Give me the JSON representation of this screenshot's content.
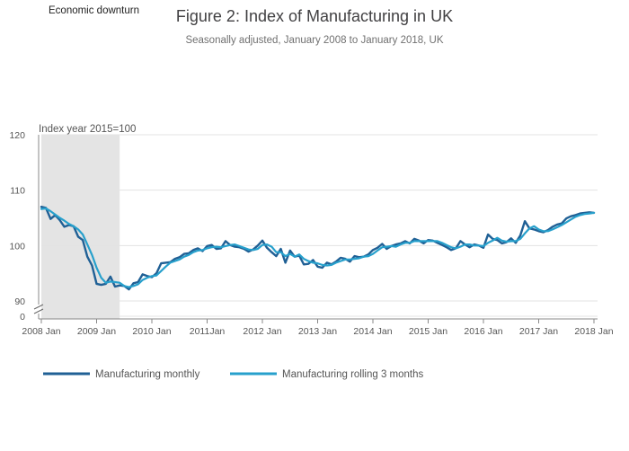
{
  "chart_data": {
    "type": "line",
    "title": "Figure 2: Index of Manufacturing in UK",
    "subtitle": "Seasonally adjusted, January 2008 to January 2018, UK",
    "unit_label": "Index year 2015=100",
    "shaded_region": {
      "label": "Economic downturn",
      "start": 2008.0,
      "end": 2009.417,
      "color": "#e4e4e4"
    },
    "x_ticks": [
      {
        "value": 2008,
        "label": "2008 Jan"
      },
      {
        "value": 2009,
        "label": "2009 Jan"
      },
      {
        "value": 2010,
        "label": "2010 Jan"
      },
      {
        "value": 2011,
        "label": "2011Jan"
      },
      {
        "value": 2012,
        "label": "2012 Jan"
      },
      {
        "value": 2013,
        "label": "2013 Jan"
      },
      {
        "value": 2014,
        "label": "2014 Jan"
      },
      {
        "value": 2015,
        "label": "2015 Jan"
      },
      {
        "value": 2016,
        "label": "2016 Jan"
      },
      {
        "value": 2017,
        "label": "2017 Jan"
      },
      {
        "value": 2018,
        "label": "2018 Jan"
      }
    ],
    "y_ticks": [
      {
        "value": 90,
        "label": "90"
      },
      {
        "value": 100,
        "label": "100"
      },
      {
        "value": 110,
        "label": "110"
      },
      {
        "value": 120,
        "label": "120"
      }
    ],
    "y_zero_label": "0",
    "ylim": [
      90,
      120
    ],
    "xlim": [
      2008,
      2018
    ],
    "series": [
      {
        "name": "Manufacturing monthly",
        "color": "#206095",
        "points": [
          [
            2008.0,
            107.0
          ],
          [
            2008.083,
            106.8
          ],
          [
            2008.167,
            104.8
          ],
          [
            2008.25,
            105.5
          ],
          [
            2008.333,
            104.6
          ],
          [
            2008.417,
            103.4
          ],
          [
            2008.5,
            103.7
          ],
          [
            2008.583,
            103.5
          ],
          [
            2008.667,
            101.6
          ],
          [
            2008.75,
            101.0
          ],
          [
            2008.833,
            98.0
          ],
          [
            2008.917,
            96.4
          ],
          [
            2009.0,
            93.1
          ],
          [
            2009.083,
            92.9
          ],
          [
            2009.167,
            93.1
          ],
          [
            2009.25,
            94.4
          ],
          [
            2009.333,
            92.6
          ],
          [
            2009.417,
            92.8
          ],
          [
            2009.5,
            92.7
          ],
          [
            2009.583,
            92.1
          ],
          [
            2009.667,
            93.2
          ],
          [
            2009.75,
            93.4
          ],
          [
            2009.833,
            94.8
          ],
          [
            2009.917,
            94.5
          ],
          [
            2010.0,
            94.3
          ],
          [
            2010.083,
            95.0
          ],
          [
            2010.167,
            96.8
          ],
          [
            2010.25,
            96.9
          ],
          [
            2010.333,
            97.0
          ],
          [
            2010.417,
            97.6
          ],
          [
            2010.5,
            97.9
          ],
          [
            2010.583,
            98.5
          ],
          [
            2010.667,
            98.6
          ],
          [
            2010.75,
            99.2
          ],
          [
            2010.833,
            99.5
          ],
          [
            2010.917,
            99.0
          ],
          [
            2011.0,
            99.9
          ],
          [
            2011.083,
            100.1
          ],
          [
            2011.167,
            99.4
          ],
          [
            2011.25,
            99.5
          ],
          [
            2011.333,
            100.8
          ],
          [
            2011.417,
            100.1
          ],
          [
            2011.5,
            99.8
          ],
          [
            2011.583,
            99.7
          ],
          [
            2011.667,
            99.4
          ],
          [
            2011.75,
            98.9
          ],
          [
            2011.833,
            99.3
          ],
          [
            2011.917,
            100.0
          ],
          [
            2012.0,
            100.9
          ],
          [
            2012.083,
            99.6
          ],
          [
            2012.167,
            98.8
          ],
          [
            2012.25,
            98.1
          ],
          [
            2012.333,
            99.4
          ],
          [
            2012.417,
            96.9
          ],
          [
            2012.5,
            99.1
          ],
          [
            2012.583,
            98.0
          ],
          [
            2012.667,
            98.2
          ],
          [
            2012.75,
            96.6
          ],
          [
            2012.833,
            96.7
          ],
          [
            2012.917,
            97.4
          ],
          [
            2013.0,
            96.2
          ],
          [
            2013.083,
            96.0
          ],
          [
            2013.167,
            96.9
          ],
          [
            2013.25,
            96.6
          ],
          [
            2013.333,
            97.1
          ],
          [
            2013.417,
            97.8
          ],
          [
            2013.5,
            97.6
          ],
          [
            2013.583,
            97.1
          ],
          [
            2013.667,
            98.1
          ],
          [
            2013.75,
            97.9
          ],
          [
            2013.833,
            98.0
          ],
          [
            2013.917,
            98.4
          ],
          [
            2014.0,
            99.2
          ],
          [
            2014.083,
            99.6
          ],
          [
            2014.167,
            100.3
          ],
          [
            2014.25,
            99.4
          ],
          [
            2014.333,
            99.9
          ],
          [
            2014.417,
            100.2
          ],
          [
            2014.5,
            100.4
          ],
          [
            2014.583,
            100.8
          ],
          [
            2014.667,
            100.4
          ],
          [
            2014.75,
            101.2
          ],
          [
            2014.833,
            100.9
          ],
          [
            2014.917,
            100.4
          ],
          [
            2015.0,
            101.0
          ],
          [
            2015.083,
            100.9
          ],
          [
            2015.167,
            100.5
          ],
          [
            2015.25,
            100.1
          ],
          [
            2015.333,
            99.7
          ],
          [
            2015.417,
            99.2
          ],
          [
            2015.5,
            99.5
          ],
          [
            2015.583,
            100.8
          ],
          [
            2015.667,
            100.2
          ],
          [
            2015.75,
            99.7
          ],
          [
            2015.833,
            100.2
          ],
          [
            2015.917,
            100.0
          ],
          [
            2016.0,
            99.6
          ],
          [
            2016.083,
            102.0
          ],
          [
            2016.167,
            101.2
          ],
          [
            2016.25,
            101.0
          ],
          [
            2016.333,
            100.4
          ],
          [
            2016.417,
            100.6
          ],
          [
            2016.5,
            101.3
          ],
          [
            2016.583,
            100.5
          ],
          [
            2016.667,
            101.8
          ],
          [
            2016.75,
            104.4
          ],
          [
            2016.833,
            103.1
          ],
          [
            2016.917,
            102.9
          ],
          [
            2017.0,
            102.6
          ],
          [
            2017.083,
            102.4
          ],
          [
            2017.167,
            102.8
          ],
          [
            2017.25,
            103.4
          ],
          [
            2017.333,
            103.8
          ],
          [
            2017.417,
            104.0
          ],
          [
            2017.5,
            104.9
          ],
          [
            2017.583,
            105.3
          ],
          [
            2017.667,
            105.5
          ],
          [
            2017.75,
            105.8
          ],
          [
            2017.833,
            105.9
          ],
          [
            2017.917,
            106.0
          ],
          [
            2018.0,
            105.9
          ]
        ]
      },
      {
        "name": "Manufacturing rolling 3 months",
        "color": "#27a0cc",
        "points": [
          [
            2008.0,
            106.6
          ],
          [
            2008.083,
            106.7
          ],
          [
            2008.167,
            106.2
          ],
          [
            2008.25,
            105.6
          ],
          [
            2008.333,
            105.0
          ],
          [
            2008.417,
            104.5
          ],
          [
            2008.5,
            103.9
          ],
          [
            2008.583,
            103.5
          ],
          [
            2008.667,
            102.9
          ],
          [
            2008.75,
            102.0
          ],
          [
            2008.833,
            100.2
          ],
          [
            2008.917,
            98.3
          ],
          [
            2009.0,
            96.0
          ],
          [
            2009.083,
            94.2
          ],
          [
            2009.167,
            93.3
          ],
          [
            2009.25,
            93.5
          ],
          [
            2009.333,
            93.4
          ],
          [
            2009.417,
            93.3
          ],
          [
            2009.5,
            92.7
          ],
          [
            2009.583,
            92.5
          ],
          [
            2009.667,
            92.7
          ],
          [
            2009.75,
            93.0
          ],
          [
            2009.833,
            93.8
          ],
          [
            2009.917,
            94.2
          ],
          [
            2010.0,
            94.5
          ],
          [
            2010.083,
            94.6
          ],
          [
            2010.167,
            95.4
          ],
          [
            2010.25,
            96.2
          ],
          [
            2010.333,
            96.9
          ],
          [
            2010.417,
            97.2
          ],
          [
            2010.5,
            97.5
          ],
          [
            2010.583,
            98.0
          ],
          [
            2010.667,
            98.3
          ],
          [
            2010.75,
            98.8
          ],
          [
            2010.833,
            99.1
          ],
          [
            2010.917,
            99.2
          ],
          [
            2011.0,
            99.5
          ],
          [
            2011.083,
            99.7
          ],
          [
            2011.167,
            99.8
          ],
          [
            2011.25,
            99.7
          ],
          [
            2011.333,
            99.9
          ],
          [
            2011.417,
            100.1
          ],
          [
            2011.5,
            100.2
          ],
          [
            2011.583,
            99.9
          ],
          [
            2011.667,
            99.6
          ],
          [
            2011.75,
            99.3
          ],
          [
            2011.833,
            99.2
          ],
          [
            2011.917,
            99.4
          ],
          [
            2012.0,
            100.1
          ],
          [
            2012.083,
            100.2
          ],
          [
            2012.167,
            99.8
          ],
          [
            2012.25,
            98.8
          ],
          [
            2012.333,
            98.8
          ],
          [
            2012.417,
            98.1
          ],
          [
            2012.5,
            98.5
          ],
          [
            2012.583,
            98.0
          ],
          [
            2012.667,
            98.4
          ],
          [
            2012.75,
            97.6
          ],
          [
            2012.833,
            97.2
          ],
          [
            2012.917,
            96.9
          ],
          [
            2013.0,
            96.8
          ],
          [
            2013.083,
            96.5
          ],
          [
            2013.167,
            96.4
          ],
          [
            2013.25,
            96.5
          ],
          [
            2013.333,
            96.9
          ],
          [
            2013.417,
            97.2
          ],
          [
            2013.5,
            97.5
          ],
          [
            2013.583,
            97.5
          ],
          [
            2013.667,
            97.6
          ],
          [
            2013.75,
            97.7
          ],
          [
            2013.833,
            98.0
          ],
          [
            2013.917,
            98.1
          ],
          [
            2014.0,
            98.5
          ],
          [
            2014.083,
            99.1
          ],
          [
            2014.167,
            99.7
          ],
          [
            2014.25,
            99.8
          ],
          [
            2014.333,
            99.9
          ],
          [
            2014.417,
            99.8
          ],
          [
            2014.5,
            100.2
          ],
          [
            2014.583,
            100.5
          ],
          [
            2014.667,
            100.5
          ],
          [
            2014.75,
            100.8
          ],
          [
            2014.833,
            100.8
          ],
          [
            2014.917,
            100.8
          ],
          [
            2015.0,
            100.8
          ],
          [
            2015.083,
            100.8
          ],
          [
            2015.167,
            100.8
          ],
          [
            2015.25,
            100.5
          ],
          [
            2015.333,
            100.1
          ],
          [
            2015.417,
            99.7
          ],
          [
            2015.5,
            99.5
          ],
          [
            2015.583,
            99.8
          ],
          [
            2015.667,
            100.2
          ],
          [
            2015.75,
            100.2
          ],
          [
            2015.833,
            100.0
          ],
          [
            2015.917,
            100.0
          ],
          [
            2016.0,
            99.9
          ],
          [
            2016.083,
            100.5
          ],
          [
            2016.167,
            100.9
          ],
          [
            2016.25,
            101.4
          ],
          [
            2016.333,
            100.9
          ],
          [
            2016.417,
            100.7
          ],
          [
            2016.5,
            100.8
          ],
          [
            2016.583,
            100.8
          ],
          [
            2016.667,
            101.2
          ],
          [
            2016.75,
            102.2
          ],
          [
            2016.833,
            103.1
          ],
          [
            2016.917,
            103.5
          ],
          [
            2017.0,
            102.9
          ],
          [
            2017.083,
            102.6
          ],
          [
            2017.167,
            102.6
          ],
          [
            2017.25,
            102.9
          ],
          [
            2017.333,
            103.3
          ],
          [
            2017.417,
            103.7
          ],
          [
            2017.5,
            104.2
          ],
          [
            2017.583,
            104.7
          ],
          [
            2017.667,
            105.2
          ],
          [
            2017.75,
            105.5
          ],
          [
            2017.833,
            105.7
          ],
          [
            2017.917,
            105.8
          ],
          [
            2018.0,
            105.9
          ]
        ]
      }
    ]
  }
}
